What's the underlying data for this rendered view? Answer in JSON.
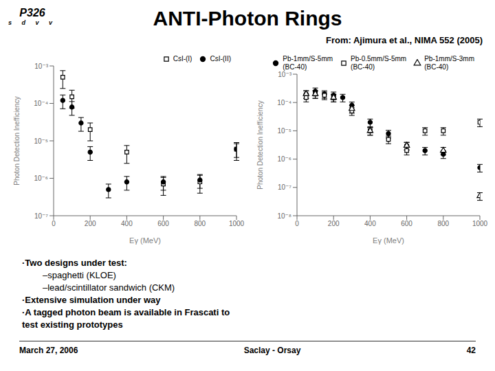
{
  "title": "ANTI-Photon Rings",
  "subtitle": "From: Ajimura et al., NIMA 552 (2005)",
  "logo": {
    "text": "P326",
    "letters": [
      "s",
      "d",
      "v",
      "v"
    ]
  },
  "annotations": [
    "·Two designs under test:",
    "–spaghetti (KLOE)",
    "–lead/scintillator sandwich (CKM)",
    "·Extensive simulation under way",
    "·A tagged photon beam is available in Frascati to",
    "test existing prototypes"
  ],
  "footer": [
    "March 27, 2006",
    "Saclay - Orsay",
    "42"
  ],
  "chart_data": [
    {
      "type": "scatter",
      "x_label": "Eγ (MeV)",
      "y_label": "Photon Detection Inefficiency",
      "log": "y",
      "xlim": [
        0,
        1000
      ],
      "xticks": [
        0,
        200,
        400,
        600,
        800,
        1000
      ],
      "ylim": [
        1e-07,
        0.001
      ],
      "yticks": [
        {
          "value": 1e-07,
          "label": "10⁻⁷"
        },
        {
          "value": 1e-06,
          "label": "10⁻⁶"
        },
        {
          "value": 1e-05,
          "label": "10⁻⁵"
        },
        {
          "value": 0.0001,
          "label": "10⁻⁴"
        },
        {
          "value": 0.001,
          "label": "10⁻³"
        }
      ],
      "grid": false,
      "legend": "upper right",
      "series": [
        {
          "name": "CsI-(I)",
          "color": "#000000",
          "marker": "square-open",
          "x": [
            50,
            100,
            200,
            400,
            600,
            800,
            1000
          ],
          "values": [
            0.0005,
            0.00015,
            2e-05,
            5e-06,
            7e-07,
            8e-07,
            6e-06
          ],
          "errors": [
            0.00025,
            7.5e-05,
            1e-05,
            2.5e-06,
            3.5e-07,
            4e-07,
            3e-06
          ]
        },
        {
          "name": "CsI-(II)",
          "color": "#000000",
          "marker": "circle-filled",
          "x": [
            50,
            100,
            150,
            200,
            300,
            400,
            600,
            800,
            1000
          ],
          "values": [
            0.00012,
            8e-05,
            3e-05,
            5e-06,
            5e-07,
            8e-07,
            8e-07,
            9e-07,
            6e-06
          ],
          "errors": [
            4.8e-05,
            3.2e-05,
            1.2e-05,
            2e-06,
            2e-07,
            3.2e-07,
            3.2e-07,
            3.6e-07,
            2.4e-06
          ]
        }
      ]
    },
    {
      "type": "scatter",
      "x_label": "Eγ (MeV)",
      "y_label": "Photon Detection Inefficiency",
      "log": "y",
      "xlim": [
        0,
        1000
      ],
      "xticks": [
        0,
        200,
        400,
        600,
        800,
        1000
      ],
      "ylim": [
        1e-08,
        0.001
      ],
      "yticks": [
        {
          "value": 1e-08,
          "label": "10⁻⁸"
        },
        {
          "value": 1e-07,
          "label": "10⁻⁷"
        },
        {
          "value": 1e-06,
          "label": "10⁻⁶"
        },
        {
          "value": 1e-05,
          "label": "10⁻⁵"
        },
        {
          "value": 0.0001,
          "label": "10⁻⁴"
        },
        {
          "value": 0.001,
          "label": "10⁻³"
        }
      ],
      "grid": false,
      "legend": "upper right",
      "series": [
        {
          "name": "Pb-1mm/S-5mm\n(BC-40)",
          "color": "#000000",
          "marker": "circle-filled",
          "x": [
            50,
            100,
            150,
            200,
            250,
            300,
            400,
            500,
            600,
            700,
            800,
            1000
          ],
          "values": [
            0.0002,
            0.00025,
            0.0002,
            0.00018,
            0.00015,
            8e-05,
            2e-05,
            8e-06,
            3e-06,
            2e-06,
            1.5e-06,
            5e-07
          ],
          "errors": [
            6e-05,
            7.5e-05,
            6e-05,
            5.4e-05,
            4.5e-05,
            2.4e-05,
            6e-06,
            2.4e-06,
            9e-07,
            6e-07,
            4.5e-07,
            1.5e-07
          ]
        },
        {
          "name": "Pb-0.5mm/S-5mm\n(BC-40)",
          "color": "#000000",
          "marker": "square-open",
          "x": [
            50,
            100,
            150,
            200,
            300,
            400,
            500,
            600,
            700,
            800,
            1000
          ],
          "values": [
            0.00015,
            0.0002,
            0.00018,
            0.00015,
            5e-05,
            1e-05,
            5e-06,
            2e-06,
            1e-05,
            1e-05,
            2e-05
          ],
          "errors": [
            4.5e-05,
            6e-05,
            5.4e-05,
            4.5e-05,
            1.5e-05,
            3e-06,
            1.5e-06,
            6e-07,
            3e-06,
            3e-06,
            6e-06
          ]
        },
        {
          "name": "Pb-1mm/S-3mm\n(BC-40)",
          "color": "#000000",
          "marker": "triangle-open",
          "x": [
            50,
            100,
            200,
            300,
            400,
            600,
            800,
            1000
          ],
          "values": [
            0.0002,
            0.0002,
            0.00015,
            6e-05,
            1e-05,
            3e-06,
            2e-06,
            5e-08
          ],
          "errors": [
            6e-05,
            6e-05,
            4.5e-05,
            1.8e-05,
            3e-06,
            9e-07,
            6e-07,
            1.5e-08
          ]
        }
      ]
    }
  ]
}
